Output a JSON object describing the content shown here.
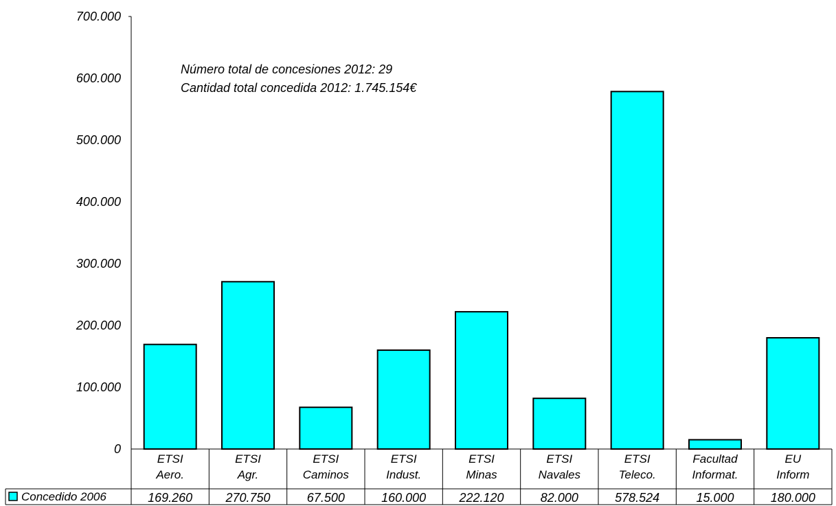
{
  "chart_data": {
    "type": "bar",
    "categories": [
      [
        "ETSI",
        "Aero."
      ],
      [
        "ETSI",
        "Agr."
      ],
      [
        "ETSI",
        "Caminos"
      ],
      [
        "ETSI",
        "Indust."
      ],
      [
        "ETSI",
        "Minas"
      ],
      [
        "ETSI",
        "Navales"
      ],
      [
        "ETSI",
        "Teleco."
      ],
      [
        "Facultad",
        "Informat."
      ],
      [
        "EU",
        "Inform"
      ]
    ],
    "series": [
      {
        "name": "Concedido 2006",
        "values": [
          169260,
          270750,
          67500,
          160000,
          222120,
          82000,
          578524,
          15000,
          180000
        ],
        "value_labels": [
          "169.260",
          "270.750",
          "67.500",
          "160.000",
          "222.120",
          "82.000",
          "578.524",
          "15.000",
          "180.000"
        ],
        "color": "#00ffff"
      }
    ],
    "ylim": [
      0,
      700000
    ],
    "yticks": [
      0,
      100000,
      200000,
      300000,
      400000,
      500000,
      600000,
      700000
    ],
    "ytick_labels": [
      "0",
      "100.000",
      "200.000",
      "300.000",
      "400.000",
      "500.000",
      "600.000",
      "700.000"
    ],
    "annotations": [
      "Número total de concesiones 2012: 29",
      "Cantidad total concedida 2012: 1.745.154€"
    ],
    "data_table": true,
    "grid": false,
    "legend": "in-data-table"
  }
}
